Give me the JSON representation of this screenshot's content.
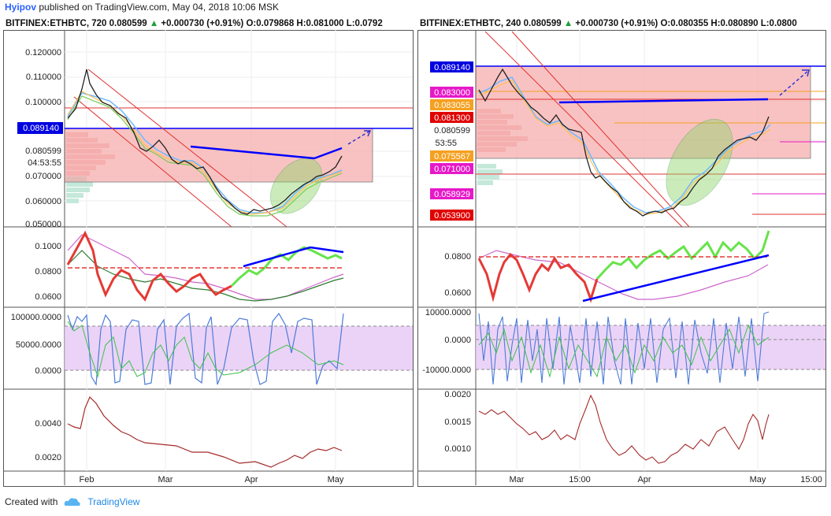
{
  "header": {
    "user": "Hyipov",
    "text": " published on TradingView.com, May 04, 2018 10:06 MSK"
  },
  "footer": {
    "created_with": "Created with",
    "brand": "TradingView"
  },
  "colors": {
    "red_zone": "#f6a3a3",
    "blue_level": "#0000ff",
    "ellipse": "#8fd46a",
    "osc_band": "#e6c8f5",
    "vol_line": "#a52a2a"
  },
  "panels": [
    {
      "symbol": "BITFINEX:ETHBTC, 720",
      "price": "0.080599",
      "change": "+0.000730 (+0.91%)",
      "ohlc": "O:0.079868 H:0.081000 L:0.0792",
      "main_ticks": [
        "0.120000",
        "0.110000",
        "0.100000",
        "0.080599",
        "0.070000",
        "0.060000",
        "0.050000"
      ],
      "level_label": "0.089140",
      "countdown": "04:53:55",
      "osc1_ticks": [
        "0.1000",
        "0.0800",
        "0.0600"
      ],
      "osc2_ticks": [
        "100000.0000",
        "50000.0000",
        "0.0000"
      ],
      "osc3_ticks": [
        "0.0040",
        "0.0020"
      ],
      "x_ticks": [
        "Feb",
        "Mar",
        "Apr",
        "May"
      ]
    },
    {
      "symbol": "BITFINEX:ETHBTC, 240",
      "price": "0.080599",
      "change": "+0.000730 (+0.91%)",
      "ohlc": "O:0.080355 H:0.080890 L:0.0800",
      "level_label": "0.089140",
      "side_labels": [
        {
          "text": "0.083000",
          "color": "#e619c8"
        },
        {
          "text": "0.083055",
          "color": "#f5a020"
        },
        {
          "text": "0.081300",
          "color": "#e00000"
        },
        {
          "text": "0.080599",
          "color": "#ffffff"
        },
        {
          "text": "0.075567",
          "color": "#f5a020"
        },
        {
          "text": "0.071000",
          "color": "#e619c8"
        },
        {
          "text": "0.058929",
          "color": "#e619c8"
        },
        {
          "text": "0.053900",
          "color": "#e00000"
        }
      ],
      "countdown": "53:55",
      "osc1_ticks": [
        "0.0800",
        "0.0600"
      ],
      "osc2_ticks": [
        "10000.0000",
        "0.0000",
        "-10000.0000"
      ],
      "osc3_ticks": [
        "0.0020",
        "0.0015",
        "0.0010"
      ],
      "x_ticks": [
        "Mar",
        "15:00",
        "Apr",
        "May",
        "15:00"
      ]
    }
  ],
  "chart_data": [
    {
      "type": "line",
      "title": "BITFINEX:ETHBTC, 720",
      "series": [
        {
          "name": "ETHBTC",
          "x": [
            "Jan 28",
            "Feb 01",
            "Feb 10",
            "Feb 20",
            "Mar 01",
            "Mar 10",
            "Mar 20",
            "Apr 01",
            "Apr 10",
            "Apr 20",
            "Apr 25",
            "May 04"
          ],
          "values": [
            0.098,
            0.105,
            0.097,
            0.078,
            0.082,
            0.072,
            0.067,
            0.055,
            0.054,
            0.062,
            0.07,
            0.0806
          ]
        }
      ],
      "levels": [
        0.08914
      ],
      "ylim": [
        0.05,
        0.125
      ]
    },
    {
      "type": "line",
      "title": "BITFINEX:ETHBTC, 240",
      "series": [
        {
          "name": "ETHBTC",
          "x": [
            "Feb 20",
            "Mar 01",
            "Mar 10",
            "Mar 20",
            "Apr 01",
            "Apr 10",
            "Apr 20",
            "Apr 28",
            "May 04"
          ],
          "values": [
            0.086,
            0.082,
            0.079,
            0.067,
            0.058,
            0.055,
            0.065,
            0.076,
            0.0806
          ]
        }
      ],
      "levels": [
        0.08914,
        0.083,
        0.083055,
        0.0813,
        0.075567,
        0.071,
        0.058929,
        0.0539
      ]
    }
  ]
}
